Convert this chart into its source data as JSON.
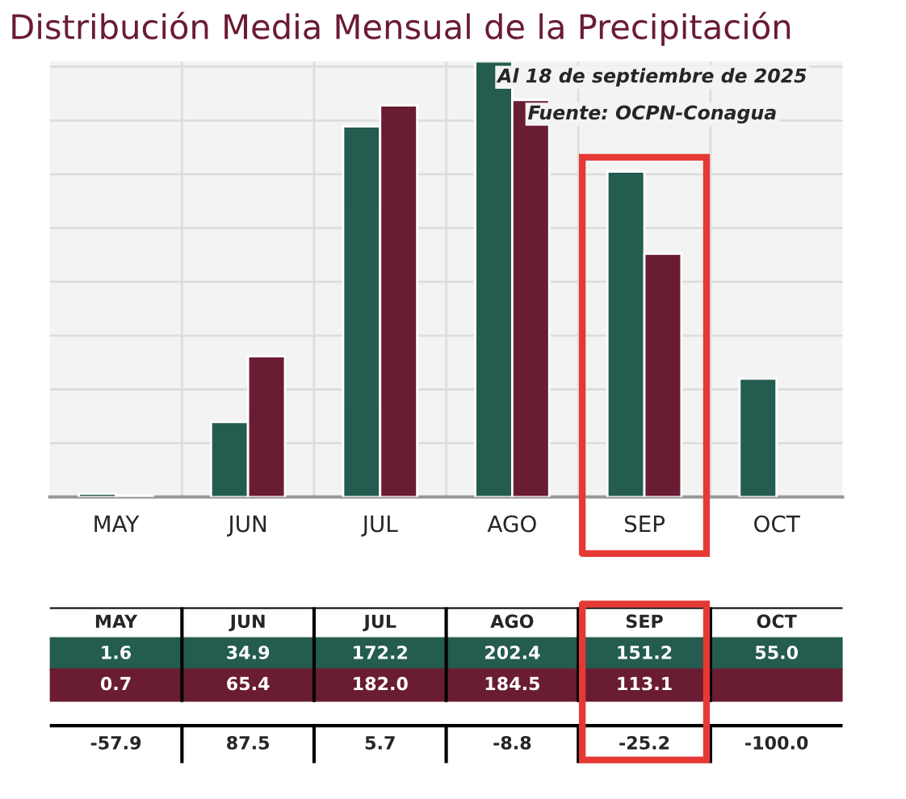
{
  "chart_data": {
    "type": "bar",
    "title": "Distribución Media Mensual de la Precipitación",
    "categories": [
      "MAY",
      "JUN",
      "JUL",
      "AGO",
      "SEP",
      "OCT"
    ],
    "series": [
      {
        "color": "#245c4f",
        "values": [
          1.6,
          34.9,
          172.2,
          202.4,
          151.2,
          55.0
        ],
        "value_labels": [
          "1.6",
          "34.9",
          "172.2",
          "202.4",
          "151.2",
          "55.0"
        ]
      },
      {
        "color": "#6a1c32",
        "values": [
          0.7,
          65.4,
          182.0,
          184.5,
          113.1,
          null
        ],
        "value_labels": [
          "0.7",
          "65.4",
          "182.0",
          "184.5",
          "113.1",
          null
        ]
      }
    ],
    "grid": true,
    "annotations": [
      "Al 18 de septiembre de 2025",
      "Fuente: OCPN-Conagua",
      "-57.9",
      "87.5",
      "5.7",
      "-8.8",
      "-25.2",
      "-100.0"
    ]
  }
}
